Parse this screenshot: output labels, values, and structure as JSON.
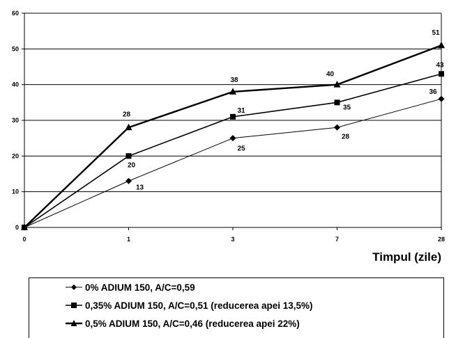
{
  "chart_data": {
    "type": "line",
    "categories": [
      "0",
      "1",
      "3",
      "7",
      "28"
    ],
    "xlabel": "Timpul (zile)",
    "ylabel": "",
    "ylim": [
      0,
      60
    ],
    "yticks": [
      "0",
      "10",
      "20",
      "30",
      "40",
      "50",
      "60"
    ],
    "grid": "horizontal",
    "legend_position": "bottom",
    "series": [
      {
        "name": "0% ADIUM 150, A/C=0,59",
        "values": [
          0,
          13,
          25,
          28,
          36
        ],
        "marker": "diamond",
        "line_width": "thin",
        "labels": [
          "",
          "13",
          "25",
          "28",
          "36"
        ]
      },
      {
        "name": "0,35% ADIUM 150, A/C=0,51 (reducerea apei 13,5%)",
        "values": [
          0,
          20,
          31,
          35,
          43
        ],
        "marker": "square",
        "line_width": "medium",
        "labels": [
          "",
          "20",
          "31",
          "35",
          "43"
        ]
      },
      {
        "name": "0,5% ADIUM 150, A/C=0,46 (reducerea apei 22%)",
        "values": [
          0,
          28,
          38,
          40,
          51
        ],
        "marker": "triangle",
        "line_width": "thick",
        "labels": [
          "",
          "28",
          "38",
          "40",
          "51"
        ]
      }
    ]
  }
}
